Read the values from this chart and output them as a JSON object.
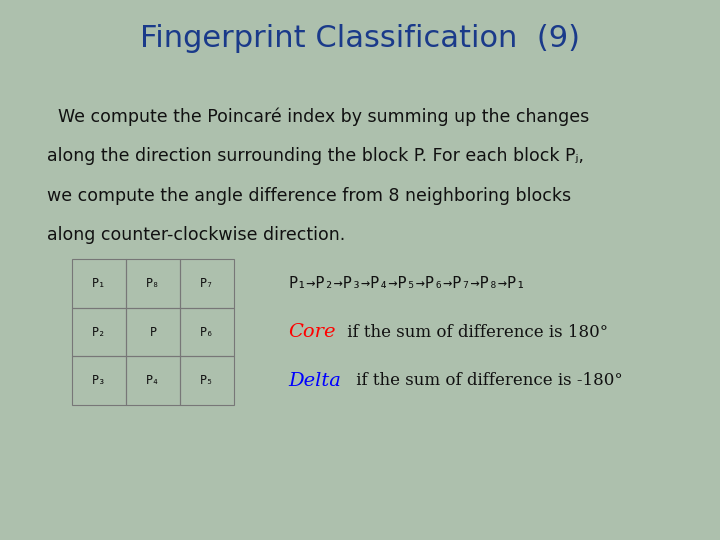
{
  "title": "Fingerprint Classification  (9)",
  "title_color": "#1a3a8a",
  "title_fontsize": 22,
  "bg_color": "#adc0ad",
  "body_line1": "  We compute the Poincaré index by summing up the changes",
  "body_line2": "along the direction surrounding the block P. For each block Pⱼ,",
  "body_line3": "we compute the angle difference from 8 neighboring blocks",
  "body_line4": "along counter-clockwise direction.",
  "body_fontsize": 12.5,
  "body_color": "#111111",
  "grid_labels": [
    [
      "P₁",
      "P₈",
      "P₇"
    ],
    [
      "P₂",
      "P",
      "P₆"
    ],
    [
      "P₃",
      "P₄",
      "P₅"
    ]
  ],
  "grid_line_color": "#777777",
  "grid_label_fontsize": 8.5,
  "sequence_text": "P₁→P₂→P₃→P₄→P₅→P₆→P₇→P₈→P₁",
  "core_text_red": "Core",
  "core_text_black": " if the sum of difference is 180°",
  "delta_text_blue": "Delta",
  "delta_text_black": " if the sum of difference is -180°",
  "text_fontsize": 12
}
